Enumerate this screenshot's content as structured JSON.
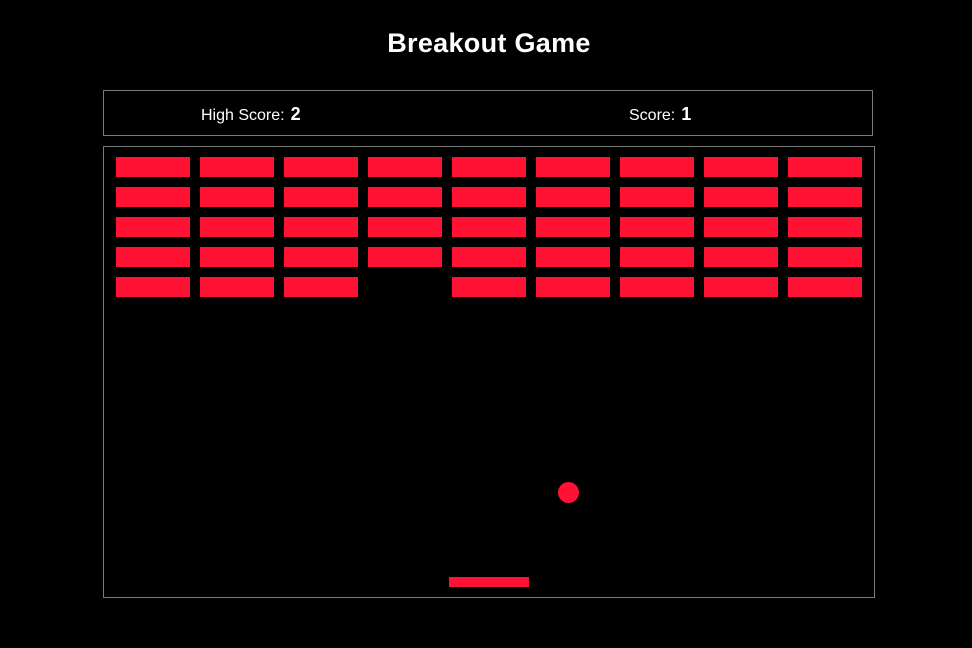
{
  "game": {
    "title": "Breakout Game",
    "high_score_label": "High Score:",
    "high_score": "2",
    "score_label": "Score:",
    "score": "1"
  },
  "colors": {
    "background": "#000000",
    "text": "#ffffff",
    "border": "#7a7a7a",
    "brick": "#ff1234",
    "ball": "#ff1234",
    "paddle": "#ff1234"
  },
  "bricks": {
    "rows": 5,
    "cols": 9,
    "present": [
      [
        1,
        1,
        1,
        1,
        1,
        1,
        1,
        1,
        1
      ],
      [
        1,
        1,
        1,
        1,
        1,
        1,
        1,
        1,
        1
      ],
      [
        1,
        1,
        1,
        1,
        1,
        1,
        1,
        1,
        1
      ],
      [
        1,
        1,
        1,
        1,
        1,
        1,
        1,
        1,
        1
      ],
      [
        1,
        1,
        1,
        0,
        1,
        1,
        1,
        1,
        1
      ]
    ]
  }
}
